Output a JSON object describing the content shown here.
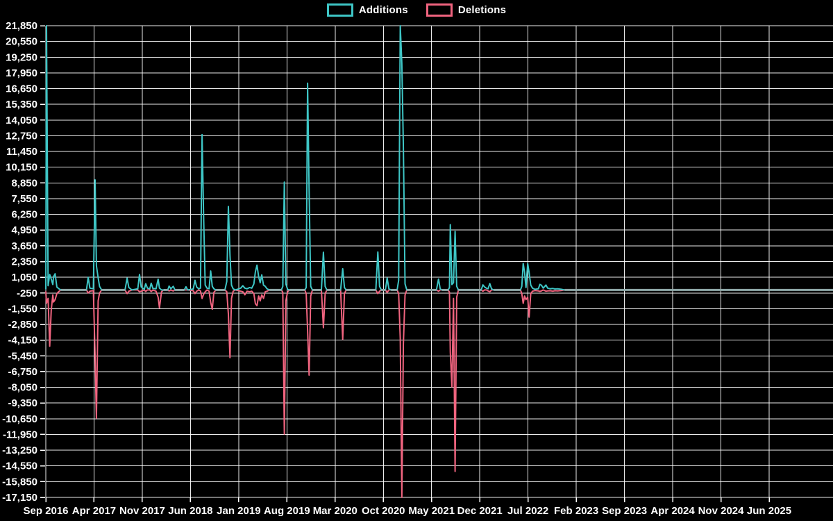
{
  "chart_data": {
    "type": "line",
    "title": "",
    "background_color": "#000000",
    "grid_color": "#ffffff",
    "zero_overlap_color": "#8fa8a8",
    "legend": [
      {
        "label": "Additions",
        "color": "#3ec6c6"
      },
      {
        "label": "Deletions",
        "color": "#f0647f"
      }
    ],
    "x_axis": {
      "tick_labels": [
        "Sep 2016",
        "Apr 2017",
        "Nov 2017",
        "Jun 2018",
        "Jan 2019",
        "Aug 2019",
        "Mar 2020",
        "Oct 2020",
        "May 2021",
        "Dec 2021",
        "Jul 2022",
        "Feb 2023",
        "Sep 2023",
        "Apr 2024",
        "Nov 2024",
        "Jun 2025"
      ],
      "tick_interval_months": 7
    },
    "y_axis": {
      "min": -17150,
      "max": 21850,
      "step": 1300,
      "tick_labels": [
        21850,
        20550,
        19250,
        17950,
        16650,
        15350,
        14050,
        12750,
        11450,
        10150,
        8850,
        7550,
        6250,
        4950,
        3650,
        2350,
        1050,
        -250,
        -1550,
        -2850,
        -4150,
        -5450,
        -6750,
        -8050,
        -9350,
        -10650,
        -11950,
        -13250,
        -14550,
        -15850,
        -17150
      ]
    },
    "series_point_format": "[months_after_Sep_2016, additions, deletions]",
    "points": [
      [
        0.0,
        100,
        -150
      ],
      [
        0.1,
        21850,
        -1100
      ],
      [
        0.33,
        350,
        -700
      ],
      [
        0.56,
        1280,
        -4650
      ],
      [
        0.79,
        900,
        -1680
      ],
      [
        1.02,
        450,
        -400
      ],
      [
        1.12,
        1090,
        -1000
      ],
      [
        1.35,
        1340,
        -800
      ],
      [
        1.6,
        250,
        -300
      ],
      [
        1.9,
        100,
        -120
      ],
      [
        2.2,
        0,
        0
      ],
      [
        5.9,
        0,
        0
      ],
      [
        6.15,
        1050,
        -250
      ],
      [
        6.4,
        150,
        -100
      ],
      [
        6.9,
        100,
        -50
      ],
      [
        7.15,
        9100,
        -5500
      ],
      [
        7.35,
        2000,
        -10600
      ],
      [
        7.6,
        1000,
        -900
      ],
      [
        7.8,
        300,
        -250
      ],
      [
        8.1,
        0,
        0
      ],
      [
        11.5,
        0,
        0
      ],
      [
        11.8,
        975,
        -300
      ],
      [
        12.05,
        200,
        -100
      ],
      [
        12.5,
        0,
        0
      ],
      [
        13.35,
        100,
        0
      ],
      [
        13.6,
        1280,
        -150
      ],
      [
        13.85,
        250,
        -100
      ],
      [
        14.3,
        50,
        0
      ],
      [
        14.5,
        520,
        -120
      ],
      [
        14.75,
        150,
        0
      ],
      [
        15.1,
        100,
        0
      ],
      [
        15.3,
        560,
        -130
      ],
      [
        15.55,
        120,
        0
      ],
      [
        16.0,
        100,
        -100
      ],
      [
        16.3,
        895,
        -600
      ],
      [
        16.5,
        150,
        -1475
      ],
      [
        16.8,
        0,
        -150
      ],
      [
        17.1,
        0,
        0
      ],
      [
        17.7,
        0,
        0
      ],
      [
        17.9,
        320,
        -80
      ],
      [
        18.15,
        100,
        0
      ],
      [
        18.5,
        300,
        -80
      ],
      [
        18.75,
        0,
        0
      ],
      [
        20.1,
        0,
        0
      ],
      [
        20.35,
        260,
        0
      ],
      [
        20.6,
        0,
        0
      ],
      [
        21.4,
        80,
        -60
      ],
      [
        21.65,
        800,
        -300
      ],
      [
        21.9,
        250,
        -100
      ],
      [
        22.2,
        100,
        0
      ],
      [
        22.45,
        150,
        -80
      ],
      [
        22.68,
        12850,
        -700
      ],
      [
        22.91,
        5900,
        -350
      ],
      [
        23.14,
        400,
        -150
      ],
      [
        23.4,
        150,
        0
      ],
      [
        23.7,
        100,
        -100
      ],
      [
        23.93,
        1570,
        -1020
      ],
      [
        24.16,
        300,
        -1590
      ],
      [
        24.4,
        100,
        -200
      ],
      [
        24.7,
        0,
        0
      ],
      [
        26.0,
        0,
        0
      ],
      [
        26.27,
        700,
        -150
      ],
      [
        26.5,
        6900,
        -2000
      ],
      [
        26.73,
        2890,
        -5600
      ],
      [
        26.96,
        400,
        -700
      ],
      [
        27.2,
        100,
        -100
      ],
      [
        27.5,
        0,
        0
      ],
      [
        28.3,
        150,
        -100
      ],
      [
        28.6,
        350,
        -150
      ],
      [
        28.9,
        150,
        -400
      ],
      [
        29.2,
        100,
        -100
      ],
      [
        29.6,
        200,
        -150
      ],
      [
        29.9,
        150,
        -100
      ],
      [
        30.2,
        500,
        -300
      ],
      [
        30.42,
        1500,
        -1130
      ],
      [
        30.65,
        2050,
        -1300
      ],
      [
        30.9,
        1100,
        -500
      ],
      [
        31.12,
        600,
        -900
      ],
      [
        31.35,
        1250,
        -400
      ],
      [
        31.6,
        400,
        -700
      ],
      [
        31.85,
        300,
        -150
      ],
      [
        32.1,
        100,
        -100
      ],
      [
        32.45,
        0,
        0
      ],
      [
        34.2,
        0,
        0
      ],
      [
        34.4,
        300,
        -200
      ],
      [
        34.62,
        8920,
        -11920
      ],
      [
        34.85,
        500,
        -900
      ],
      [
        35.1,
        50,
        -150
      ],
      [
        35.4,
        0,
        0
      ],
      [
        37.6,
        0,
        0
      ],
      [
        37.8,
        200,
        -300
      ],
      [
        38.0,
        17100,
        -3300
      ],
      [
        38.22,
        8280,
        -7040
      ],
      [
        38.45,
        300,
        -500
      ],
      [
        38.7,
        0,
        0
      ],
      [
        40.0,
        0,
        0
      ],
      [
        40.3,
        3120,
        -3120
      ],
      [
        40.55,
        300,
        -300
      ],
      [
        40.8,
        0,
        0
      ],
      [
        42.8,
        0,
        0
      ],
      [
        43.1,
        1750,
        -4075
      ],
      [
        43.35,
        200,
        -300
      ],
      [
        43.6,
        0,
        0
      ],
      [
        47.9,
        0,
        0
      ],
      [
        48.2,
        3140,
        -300
      ],
      [
        48.45,
        300,
        -100
      ],
      [
        48.7,
        0,
        0
      ],
      [
        49.3,
        0,
        0
      ],
      [
        49.55,
        990,
        -200
      ],
      [
        49.8,
        100,
        0
      ],
      [
        50.1,
        0,
        0
      ],
      [
        51.0,
        0,
        0
      ],
      [
        51.22,
        800,
        -300
      ],
      [
        51.45,
        21850,
        -4000
      ],
      [
        51.68,
        18700,
        -17150
      ],
      [
        51.91,
        11800,
        -4460
      ],
      [
        52.15,
        500,
        -400
      ],
      [
        52.4,
        0,
        0
      ],
      [
        56.7,
        0,
        0
      ],
      [
        57.0,
        900,
        -100
      ],
      [
        57.25,
        100,
        0
      ],
      [
        57.5,
        0,
        0
      ],
      [
        58.4,
        0,
        0
      ],
      [
        58.6,
        200,
        -200
      ],
      [
        58.72,
        5400,
        -5150
      ],
      [
        58.95,
        450,
        -8000
      ],
      [
        59.18,
        600,
        -700
      ],
      [
        59.41,
        4850,
        -15000
      ],
      [
        59.64,
        300,
        -600
      ],
      [
        59.9,
        0,
        0
      ],
      [
        63.2,
        0,
        0
      ],
      [
        63.45,
        420,
        -100
      ],
      [
        63.7,
        250,
        0
      ],
      [
        63.95,
        150,
        0
      ],
      [
        64.2,
        100,
        -80
      ],
      [
        64.45,
        530,
        -150
      ],
      [
        64.7,
        100,
        0
      ],
      [
        65.0,
        0,
        0
      ],
      [
        68.9,
        0,
        0
      ],
      [
        69.1,
        300,
        -300
      ],
      [
        69.3,
        2200,
        -1110
      ],
      [
        69.5,
        1450,
        -500
      ],
      [
        69.7,
        200,
        -800
      ],
      [
        69.95,
        2180,
        -600
      ],
      [
        70.15,
        1450,
        -2250
      ],
      [
        70.4,
        400,
        -300
      ],
      [
        70.65,
        150,
        -100
      ],
      [
        71.0,
        50,
        -50
      ],
      [
        71.5,
        100,
        -80
      ],
      [
        71.72,
        460,
        -120
      ],
      [
        71.95,
        390,
        -80
      ],
      [
        72.2,
        150,
        0
      ],
      [
        72.6,
        410,
        -100
      ],
      [
        72.85,
        150,
        -80
      ],
      [
        73.2,
        100,
        -60
      ],
      [
        73.6,
        120,
        -100
      ],
      [
        73.9,
        80,
        -60
      ],
      [
        74.3,
        100,
        -80
      ],
      [
        74.8,
        60,
        -50
      ],
      [
        75.3,
        0,
        0
      ],
      [
        114.3,
        0,
        0
      ]
    ]
  }
}
